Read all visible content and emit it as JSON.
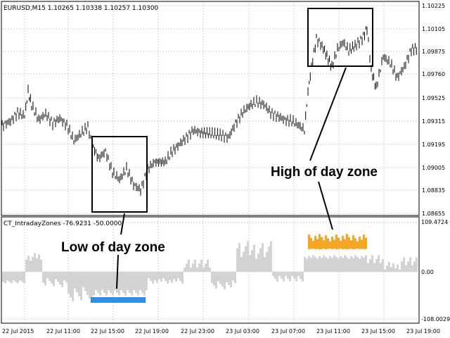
{
  "main_chart": {
    "header": "EURUSD,M15  1.10265 1.10338 1.10257 1.10300",
    "y_ticks": [
      "1.10225",
      "1.10105",
      "1.09875",
      "1.09760",
      "1.09525",
      "1.09315",
      "1.09195",
      "1.09005",
      "1.08835",
      "1.08655"
    ],
    "annotations": {
      "high_label": "High of day zone",
      "low_label": "Low of day zone"
    }
  },
  "indicator": {
    "header": "CT_IntradayZones -76.9231 -50.0000",
    "y_ticks": [
      "109.4724",
      "0.00",
      "-108.0029"
    ]
  },
  "x_ticks": [
    "22 Jul 2015",
    "22 Jul 11:00",
    "22 Jul 15:00",
    "22 Jul 19:00",
    "22 Jul 23:00",
    "23 Jul 03:00",
    "23 Jul 07:00",
    "23 Jul 11:00",
    "23 Jul 15:00",
    "23 Jul 19:00"
  ],
  "colors": {
    "candle": "#000000",
    "zone_box": "#000000",
    "gray_bars": "#d3d3d3",
    "high_bars": "#f5a623",
    "low_bars": "#2f8fe5",
    "grid": "#c8c8c8"
  },
  "chart_data": {
    "type": "bar",
    "series": [
      {
        "name": "CT_IntradayZones",
        "values_range": [
          -108.0029,
          109.4724
        ]
      }
    ],
    "ylim": [
      -108.0029,
      109.4724
    ]
  }
}
